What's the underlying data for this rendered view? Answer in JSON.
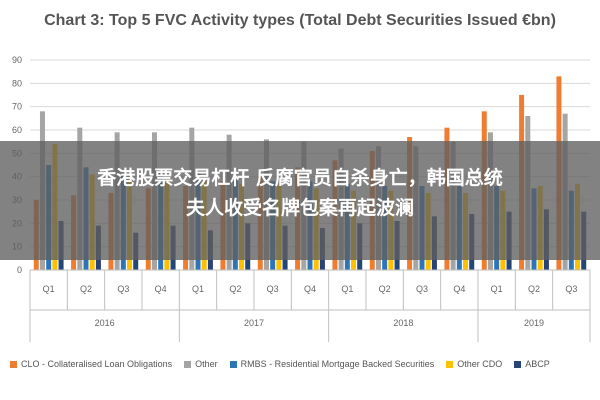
{
  "overlay": {
    "line1": "香港股票交易杠杆 反腐官员自杀身亡，韩国总统",
    "line2": "夫人收受名牌包案再起波澜"
  },
  "chart_data": {
    "type": "bar",
    "title": "Chart 3: Top 5 FVC Activity types (Total Debt Securities Issued €bn)",
    "xlabel": "",
    "ylabel": "",
    "ylim": [
      0,
      90
    ],
    "yticks": [
      0,
      10,
      20,
      30,
      40,
      50,
      60,
      70,
      80,
      90
    ],
    "grid": true,
    "legend_position": "bottom",
    "categories": [
      "Q1",
      "Q2",
      "Q3",
      "Q4",
      "Q1",
      "Q2",
      "Q3",
      "Q4",
      "Q1",
      "Q2",
      "Q3",
      "Q4",
      "Q1",
      "Q2",
      "Q3"
    ],
    "groups": [
      {
        "label": "2016",
        "count": 4
      },
      {
        "label": "2017",
        "count": 4
      },
      {
        "label": "2018",
        "count": 4
      },
      {
        "label": "2019",
        "count": 3
      }
    ],
    "series": [
      {
        "name": "CLO - Collateralised Loan Obligations",
        "color": "#ed7d31",
        "values": [
          30,
          32,
          33,
          35,
          36,
          38,
          40,
          44,
          47,
          51,
          57,
          61,
          68,
          75,
          83
        ]
      },
      {
        "name": "Other",
        "color": "#a5a5a5",
        "values": [
          68,
          61,
          59,
          59,
          61,
          58,
          56,
          55,
          52,
          53,
          53,
          55,
          59,
          66,
          67
        ]
      },
      {
        "name": "RMBS - Residential Mortgage Backed Securities",
        "color": "#2e75b6",
        "values": [
          45,
          44,
          42,
          42,
          42,
          40,
          38,
          38,
          37,
          36,
          36,
          36,
          36,
          35,
          34
        ]
      },
      {
        "name": "Other CDO",
        "color": "#ffc000",
        "values": [
          54,
          41,
          40,
          39,
          38,
          37,
          36,
          35,
          34,
          34,
          33,
          33,
          34,
          36,
          37
        ]
      },
      {
        "name": "ABCP",
        "color": "#264478",
        "values": [
          21,
          19,
          16,
          19,
          17,
          20,
          19,
          18,
          20,
          21,
          23,
          24,
          25,
          26,
          25
        ]
      }
    ]
  }
}
